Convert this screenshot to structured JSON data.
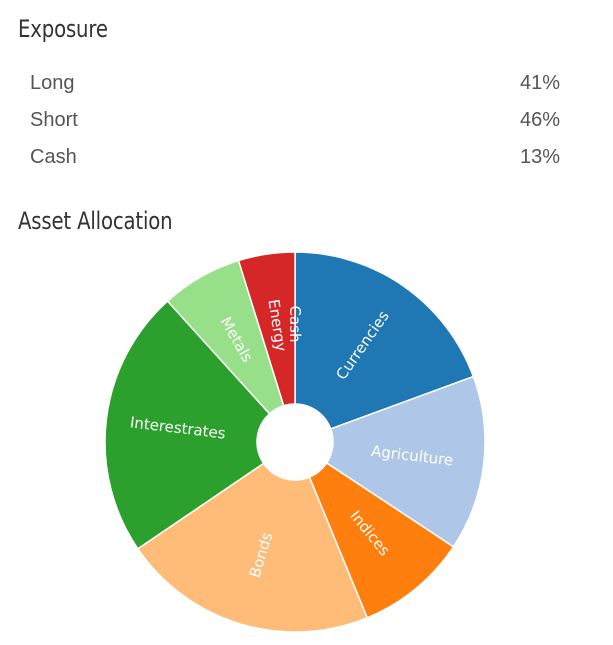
{
  "exposure": {
    "title": "Exposure",
    "rows": [
      {
        "label": "Long",
        "value": "41%"
      },
      {
        "label": "Short",
        "value": "46%"
      },
      {
        "label": "Cash",
        "value": "13%"
      }
    ]
  },
  "allocation": {
    "title": "Asset Allocation"
  },
  "chart_data": {
    "type": "pie",
    "title": "Asset Allocation",
    "style": "donut",
    "start": "12 o'clock",
    "direction": "clockwise",
    "slices": [
      {
        "label": "Currencies",
        "value": 19.4,
        "color": "#1f77b4"
      },
      {
        "label": "Agriculture",
        "value": 14.9,
        "color": "#aec7e8"
      },
      {
        "label": "Indices",
        "value": 9.5,
        "color": "#ff7f0e"
      },
      {
        "label": "Bonds",
        "value": 21.7,
        "color": "#ffbb78"
      },
      {
        "label": "Interestrates",
        "value": 22.8,
        "color": "#2ca02c"
      },
      {
        "label": "Metals",
        "value": 6.9,
        "color": "#98df8a"
      },
      {
        "label": "Energy",
        "value": 4.8,
        "color": "#d62728"
      },
      {
        "label": "Cash",
        "value": 0.0,
        "color": "#ff9896"
      }
    ]
  }
}
